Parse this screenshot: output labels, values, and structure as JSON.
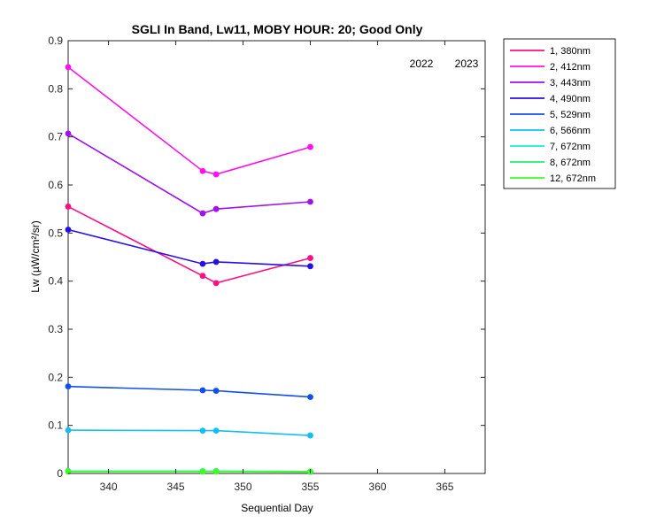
{
  "chart_data": {
    "type": "line",
    "title": "SGLI In Band,  Lw11, MOBY HOUR: 20;  Good Only",
    "xlabel": "Sequential Day",
    "ylabel": "Lw (µW/cm²/sr)",
    "xlim": [
      337,
      368
    ],
    "ylim": [
      0,
      0.9
    ],
    "xticks": [
      340,
      345,
      350,
      355,
      360,
      365
    ],
    "yticks": [
      0,
      0.1,
      0.2,
      0.3,
      0.4,
      0.5,
      0.6,
      0.7,
      0.8,
      0.9
    ],
    "ytick_labels": [
      "0",
      "0.1",
      "0.2",
      "0.3",
      "0.4",
      "0.5",
      "0.6",
      "0.7",
      "0.8",
      "0.9"
    ],
    "grid": false,
    "legend_position": "outside-right-top",
    "annotations": [
      "2022",
      "2023"
    ],
    "x": [
      337,
      347,
      348,
      355
    ],
    "series": [
      {
        "name": "1, 380nm",
        "color": "#ff0f7f",
        "values": [
          0.555,
          0.411,
          0.396,
          0.448
        ]
      },
      {
        "name": "2, 412nm",
        "color": "#ff10ee",
        "values": [
          0.845,
          0.629,
          0.622,
          0.679
        ]
      },
      {
        "name": "3, 443nm",
        "color": "#a010f0",
        "values": [
          0.707,
          0.541,
          0.55,
          0.565
        ]
      },
      {
        "name": "4, 490nm",
        "color": "#2410e6",
        "values": [
          0.507,
          0.436,
          0.44,
          0.431
        ]
      },
      {
        "name": "5, 529nm",
        "color": "#1050ea",
        "values": [
          0.181,
          0.173,
          0.172,
          0.159
        ]
      },
      {
        "name": "6, 566nm",
        "color": "#10c0f2",
        "values": [
          0.09,
          0.089,
          0.089,
          0.079
        ]
      },
      {
        "name": "7, 672nm",
        "color": "#10f0d2",
        "values": [
          0.005,
          0.005,
          0.005,
          0.004
        ]
      },
      {
        "name": "8, 672nm",
        "color": "#20f070",
        "values": [
          0.004,
          0.004,
          0.004,
          0.003
        ]
      },
      {
        "name": "12, 672nm",
        "color": "#40ff20",
        "values": [
          0.004,
          0.004,
          0.004,
          0.004
        ]
      }
    ]
  }
}
